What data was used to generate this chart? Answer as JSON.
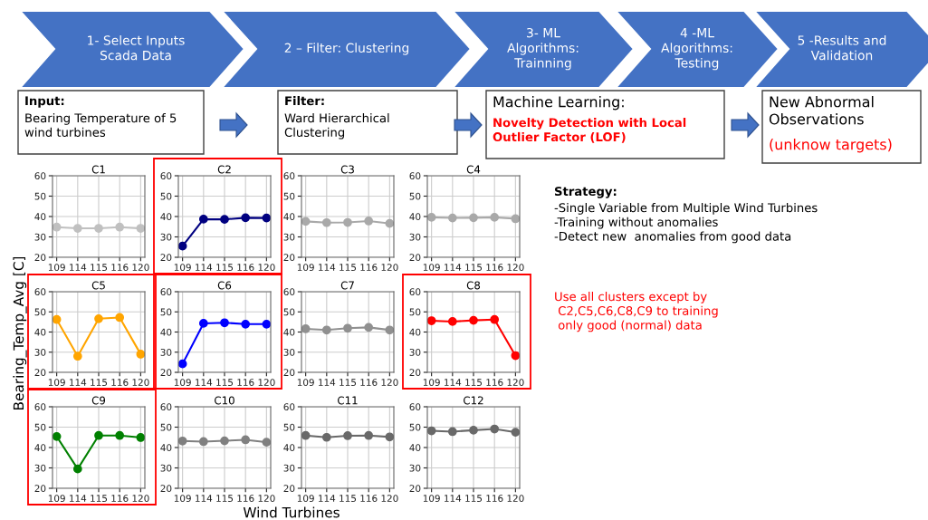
{
  "chart_data": [
    {
      "type": "line",
      "title": "C1",
      "categories": [
        "109",
        "114",
        "115",
        "116",
        "120"
      ],
      "series": [
        {
          "color": "#c0c0c0",
          "values": [
            34.8,
            34.2,
            34.2,
            34.8,
            34.2
          ]
        }
      ],
      "ylim": [
        20,
        60
      ],
      "yticks": [
        20,
        30,
        40,
        50,
        60
      ],
      "grid": true,
      "marker": "circle"
    },
    {
      "type": "line",
      "title": "C2",
      "categories": [
        "109",
        "114",
        "115",
        "116",
        "120"
      ],
      "series": [
        {
          "color": "#000080",
          "values": [
            25.5,
            38.7,
            38.6,
            39.4,
            39.3
          ]
        }
      ],
      "ylim": [
        20,
        60
      ],
      "yticks": [
        20,
        30,
        40,
        50,
        60
      ],
      "grid": true,
      "marker": "circle"
    },
    {
      "type": "line",
      "title": "C3",
      "categories": [
        "109",
        "114",
        "115",
        "116",
        "120"
      ],
      "series": [
        {
          "color": "#a9a9a9",
          "values": [
            37.6,
            37.0,
            37.1,
            37.8,
            36.6
          ]
        }
      ],
      "ylim": [
        20,
        60
      ],
      "yticks": [
        20,
        30,
        40,
        50,
        60
      ],
      "grid": true,
      "marker": "circle"
    },
    {
      "type": "line",
      "title": "C4",
      "categories": [
        "109",
        "114",
        "115",
        "116",
        "120"
      ],
      "series": [
        {
          "color": "#a9a9a9",
          "values": [
            39.6,
            39.3,
            39.4,
            39.6,
            38.9
          ]
        }
      ],
      "ylim": [
        20,
        60
      ],
      "yticks": [
        20,
        30,
        40,
        50,
        60
      ],
      "grid": true,
      "marker": "circle"
    },
    {
      "type": "line",
      "title": "C5",
      "ylabel": "Bearing_Temp_Avg [C]",
      "categories": [
        "109",
        "114",
        "115",
        "116",
        "120"
      ],
      "series": [
        {
          "color": "#ffa500",
          "values": [
            46.2,
            28.0,
            46.6,
            47.2,
            29.0
          ]
        }
      ],
      "ylim": [
        20,
        60
      ],
      "yticks": [
        20,
        30,
        40,
        50,
        60
      ],
      "grid": true,
      "marker": "circle"
    },
    {
      "type": "line",
      "title": "C6",
      "categories": [
        "109",
        "114",
        "115",
        "116",
        "120"
      ],
      "series": [
        {
          "color": "#0000ff",
          "values": [
            24.2,
            44.3,
            44.6,
            43.9,
            43.9
          ]
        }
      ],
      "ylim": [
        20,
        60
      ],
      "yticks": [
        20,
        30,
        40,
        50,
        60
      ],
      "grid": true,
      "marker": "circle"
    },
    {
      "type": "line",
      "title": "C7",
      "categories": [
        "109",
        "114",
        "115",
        "116",
        "120"
      ],
      "series": [
        {
          "color": "#909090",
          "values": [
            41.6,
            41.0,
            41.9,
            42.3,
            41.0
          ]
        }
      ],
      "ylim": [
        20,
        60
      ],
      "yticks": [
        20,
        30,
        40,
        50,
        60
      ],
      "grid": true,
      "marker": "circle"
    },
    {
      "type": "line",
      "title": "C8",
      "categories": [
        "109",
        "114",
        "115",
        "116",
        "120"
      ],
      "series": [
        {
          "color": "#ff0000",
          "values": [
            45.6,
            45.2,
            45.8,
            46.2,
            28.3
          ]
        }
      ],
      "ylim": [
        20,
        60
      ],
      "yticks": [
        20,
        30,
        40,
        50,
        60
      ],
      "grid": true,
      "marker": "circle"
    },
    {
      "type": "line",
      "title": "C9",
      "categories": [
        "109",
        "114",
        "115",
        "116",
        "120"
      ],
      "series": [
        {
          "color": "#008000",
          "values": [
            45.4,
            29.5,
            45.9,
            45.9,
            44.9
          ]
        }
      ],
      "ylim": [
        20,
        60
      ],
      "yticks": [
        20,
        30,
        40,
        50,
        60
      ],
      "grid": true,
      "marker": "circle"
    },
    {
      "type": "line",
      "title": "C10",
      "xlabel": "Wind Turbines",
      "categories": [
        "109",
        "114",
        "115",
        "116",
        "120"
      ],
      "series": [
        {
          "color": "#808080",
          "values": [
            43.2,
            42.9,
            43.3,
            43.8,
            42.6
          ]
        }
      ],
      "ylim": [
        20,
        60
      ],
      "yticks": [
        20,
        30,
        40,
        50,
        60
      ],
      "grid": true,
      "marker": "circle"
    },
    {
      "type": "line",
      "title": "C11",
      "categories": [
        "109",
        "114",
        "115",
        "116",
        "120"
      ],
      "series": [
        {
          "color": "#696969",
          "values": [
            45.9,
            45.0,
            45.8,
            45.9,
            45.2
          ]
        }
      ],
      "ylim": [
        20,
        60
      ],
      "yticks": [
        20,
        30,
        40,
        50,
        60
      ],
      "grid": true,
      "marker": "circle"
    },
    {
      "type": "line",
      "title": "C12",
      "categories": [
        "109",
        "114",
        "115",
        "116",
        "120"
      ],
      "series": [
        {
          "color": "#696969",
          "values": [
            48.2,
            47.8,
            48.5,
            49.1,
            47.5
          ]
        }
      ],
      "ylim": [
        20,
        60
      ],
      "yticks": [
        20,
        30,
        40,
        50,
        60
      ],
      "grid": true,
      "marker": "circle"
    },
    {
      "type": "other",
      "annotations": [
        "1- Select Inputs\nScada Data",
        "2 – Filter: Clustering",
        "3- ML\nAlgorithms:\nTrainning",
        "4 -ML\nAlgorithms:\nTesting",
        "5 -Results and\nValidation",
        "Input:",
        "Bearing Temperature of 5\nwind turbines",
        "Filter:",
        "Ward Hierarchical\nClustering",
        "Machine Learning:",
        "Novelty Detection with Local\nOutlier Factor (LOF)",
        "New Abnormal\nObservations",
        "(unknow targets)",
        "Strategy:",
        "-Single Variable from Multiple Wind Turbines\n-Training without anomalies\n-Detect new  anomalies from good data",
        "Use all clusters except by\n C2,C5,C6,C8,C9 to training\n only good (normal) data"
      ]
    }
  ]
}
